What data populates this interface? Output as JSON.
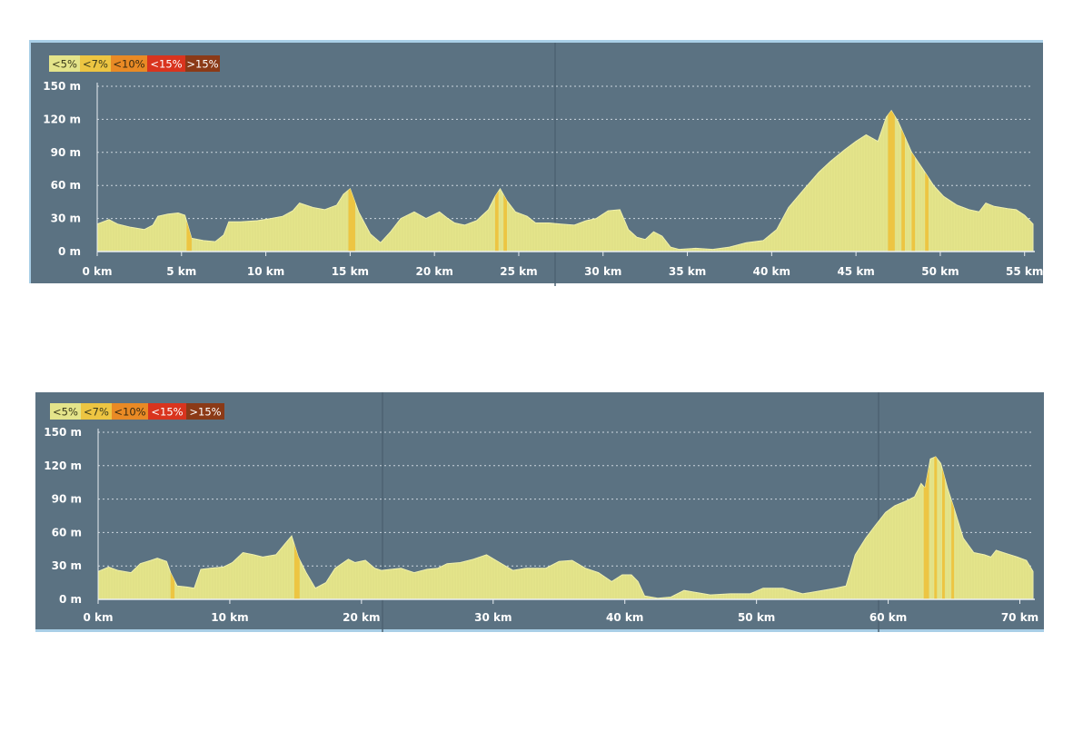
{
  "chart_data": [
    {
      "type": "area",
      "title": "",
      "xlabel": "",
      "ylabel": "",
      "xlim": [
        0,
        55.5
      ],
      "ylim": [
        0,
        150
      ],
      "grid": true,
      "legend": {
        "placement": "top-left",
        "items": [
          {
            "label": "<5%",
            "color": "#e4e48a",
            "text_color": "#3a3a1a"
          },
          {
            "label": "<7%",
            "color": "#edc542",
            "text_color": "#3a3a1a"
          },
          {
            "label": "<10%",
            "color": "#e98a25",
            "text_color": "#3a2a10"
          },
          {
            "label": "<15%",
            "color": "#d9341e",
            "text_color": "#ffffff"
          },
          {
            "label": ">15%",
            "color": "#8b3a17",
            "text_color": "#ffffff"
          }
        ]
      },
      "x_ticks": [
        {
          "value": 0,
          "label": "0 km"
        },
        {
          "value": 5,
          "label": "5 km"
        },
        {
          "value": 10,
          "label": "10 km"
        },
        {
          "value": 15,
          "label": "15 km"
        },
        {
          "value": 20,
          "label": "20 km"
        },
        {
          "value": 25,
          "label": "25 km"
        },
        {
          "value": 30,
          "label": "30 km"
        },
        {
          "value": 35,
          "label": "35 km"
        },
        {
          "value": 40,
          "label": "40 km"
        },
        {
          "value": 45,
          "label": "45 km"
        },
        {
          "value": 50,
          "label": "50 km"
        },
        {
          "value": 55,
          "label": "55 km"
        }
      ],
      "y_ticks": [
        {
          "value": 0,
          "label": "0 m"
        },
        {
          "value": 30,
          "label": "30 m"
        },
        {
          "value": 60,
          "label": "60 m"
        },
        {
          "value": 90,
          "label": "90 m"
        },
        {
          "value": 120,
          "label": "120 m"
        },
        {
          "value": 150,
          "label": "150 m"
        }
      ],
      "series": [
        {
          "x": [
            0,
            0.7,
            1.2,
            2,
            2.8,
            3.3,
            3.6,
            4.2,
            4.8,
            5.2,
            5.6,
            6.3,
            7,
            7.5,
            7.8,
            8.5,
            9.5,
            10.3,
            11,
            11.6,
            12,
            12.8,
            13.5,
            14.2,
            14.6,
            15,
            15.5,
            16.2,
            16.8,
            17.4,
            18,
            18.8,
            19.5,
            20.3,
            20.8,
            21.2,
            21.8,
            22.5,
            23.2,
            23.6,
            23.9,
            24.3,
            24.8,
            25.5,
            26,
            26.8,
            27.5,
            28.3,
            29,
            29.6,
            30.3,
            31,
            31.5,
            32,
            32.5,
            33,
            33.5,
            34,
            34.5,
            35.5,
            36.5,
            37.5,
            38.5,
            39.5,
            40.3,
            41,
            42,
            42.8,
            43.5,
            44.3,
            45,
            45.6,
            46.3,
            46.8,
            47.1,
            47.5,
            47.9,
            48.3,
            49,
            49.6,
            50.2,
            51,
            51.7,
            52.3,
            52.7,
            53.2,
            54,
            54.5,
            55,
            55.5
          ],
          "y": [
            25,
            29,
            25,
            22,
            20,
            24,
            32,
            34,
            35,
            33,
            12,
            10,
            9,
            15,
            27,
            27,
            28,
            30,
            32,
            37,
            44,
            40,
            38,
            42,
            52,
            57,
            36,
            16,
            8,
            18,
            30,
            36,
            30,
            36,
            30,
            26,
            24,
            28,
            38,
            50,
            57,
            46,
            36,
            32,
            26,
            26,
            25,
            24,
            28,
            30,
            37,
            38,
            20,
            13,
            11,
            18,
            14,
            4,
            2,
            3,
            2,
            4,
            8,
            10,
            20,
            40,
            58,
            72,
            82,
            92,
            100,
            106,
            100,
            122,
            128,
            118,
            104,
            90,
            74,
            60,
            50,
            42,
            38,
            36,
            44,
            41,
            39,
            38,
            33,
            25
          ],
          "grade_highlights": [
            {
              "x": [
                5.3,
                5.6
              ],
              "grade": "<7%"
            },
            {
              "x": [
                14.9,
                15.3
              ],
              "grade": "<7%"
            },
            {
              "x": [
                23.6,
                23.8
              ],
              "grade": "<7%"
            },
            {
              "x": [
                24.1,
                24.3
              ],
              "grade": "<7%"
            },
            {
              "x": [
                46.9,
                47.3
              ],
              "grade": "<7%"
            },
            {
              "x": [
                47.7,
                47.9
              ],
              "grade": "<7%"
            },
            {
              "x": [
                48.3,
                48.5
              ],
              "grade": "<7%"
            },
            {
              "x": [
                49.1,
                49.3
              ],
              "grade": "<7%"
            }
          ]
        }
      ]
    },
    {
      "type": "area",
      "title": "",
      "xlabel": "",
      "ylabel": "",
      "xlim": [
        0,
        71
      ],
      "ylim": [
        0,
        150
      ],
      "grid": true,
      "legend": {
        "placement": "top-left",
        "items": [
          {
            "label": "<5%",
            "color": "#e4e48a",
            "text_color": "#3a3a1a"
          },
          {
            "label": "<7%",
            "color": "#edc542",
            "text_color": "#3a3a1a"
          },
          {
            "label": "<10%",
            "color": "#e98a25",
            "text_color": "#3a2a10"
          },
          {
            "label": "<15%",
            "color": "#d9341e",
            "text_color": "#ffffff"
          },
          {
            "label": ">15%",
            "color": "#8b3a17",
            "text_color": "#ffffff"
          }
        ]
      },
      "x_ticks": [
        {
          "value": 0,
          "label": "0 km"
        },
        {
          "value": 10,
          "label": "10 km"
        },
        {
          "value": 20,
          "label": "20 km"
        },
        {
          "value": 30,
          "label": "30 km"
        },
        {
          "value": 40,
          "label": "40 km"
        },
        {
          "value": 50,
          "label": "50 km"
        },
        {
          "value": 60,
          "label": "60 km"
        },
        {
          "value": 70,
          "label": "70 km"
        }
      ],
      "y_ticks": [
        {
          "value": 0,
          "label": "0 m"
        },
        {
          "value": 30,
          "label": "30 m"
        },
        {
          "value": 60,
          "label": "60 m"
        },
        {
          "value": 90,
          "label": "90 m"
        },
        {
          "value": 120,
          "label": "120 m"
        },
        {
          "value": 150,
          "label": "150 m"
        }
      ],
      "series": [
        {
          "x": [
            0,
            0.8,
            1.5,
            2.5,
            3.2,
            4,
            4.5,
            5.2,
            5.5,
            6,
            6.8,
            7.3,
            7.8,
            8.5,
            9.5,
            10.2,
            11,
            11.8,
            12.5,
            13.5,
            14.2,
            14.7,
            15.2,
            15.8,
            16.5,
            17.3,
            18,
            19,
            19.5,
            20.3,
            21,
            21.5,
            23,
            24,
            25,
            25.8,
            26.5,
            27.5,
            28.5,
            29.5,
            30.5,
            31.5,
            32.5,
            34,
            35,
            36,
            37,
            38,
            39,
            39.8,
            40.5,
            41,
            41.5,
            42.5,
            43.5,
            44.5,
            45.5,
            46.5,
            48,
            49.5,
            50.5,
            52,
            53.5,
            55,
            56,
            56.8,
            57.5,
            58.3,
            59,
            59.8,
            60.5,
            61.3,
            62,
            62.5,
            62.8,
            63.2,
            63.6,
            64,
            64.5,
            65,
            65.7,
            66.5,
            67.3,
            67.8,
            68.2,
            69,
            69.8,
            70.5,
            71
          ],
          "y": [
            25,
            29,
            26,
            24,
            32,
            35,
            37,
            34,
            24,
            12,
            11,
            10,
            27,
            28,
            29,
            33,
            42,
            40,
            38,
            40,
            50,
            57,
            38,
            24,
            10,
            15,
            28,
            36,
            33,
            35,
            28,
            26,
            28,
            24,
            27,
            28,
            32,
            33,
            36,
            40,
            33,
            26,
            28,
            28,
            34,
            35,
            28,
            24,
            16,
            22,
            22,
            16,
            3,
            1,
            2,
            8,
            6,
            4,
            5,
            5,
            10,
            10,
            5,
            8,
            10,
            12,
            40,
            55,
            66,
            78,
            84,
            88,
            92,
            104,
            100,
            126,
            128,
            122,
            100,
            82,
            55,
            42,
            40,
            38,
            44,
            41,
            38,
            35,
            25
          ],
          "grade_highlights": [
            {
              "x": [
                5.5,
                5.8
              ],
              "grade": "<7%"
            },
            {
              "x": [
                14.9,
                15.3
              ],
              "grade": "<7%"
            },
            {
              "x": [
                62.7,
                63.1
              ],
              "grade": "<7%"
            },
            {
              "x": [
                63.5,
                63.7
              ],
              "grade": "<7%"
            },
            {
              "x": [
                64.1,
                64.3
              ],
              "grade": "<7%"
            },
            {
              "x": [
                64.8,
                65.0
              ],
              "grade": "<7%"
            }
          ]
        }
      ]
    }
  ]
}
